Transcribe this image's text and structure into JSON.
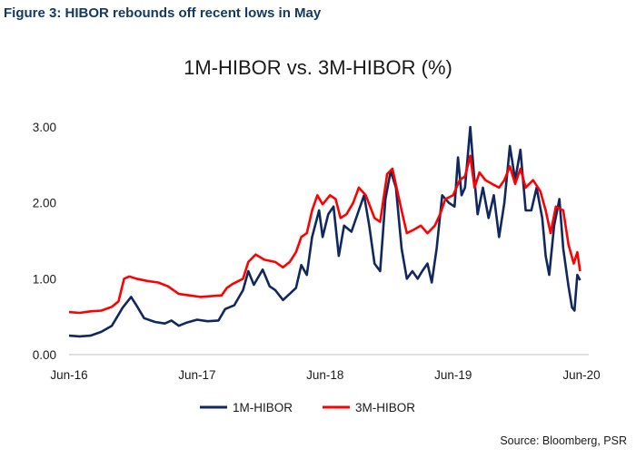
{
  "figure_title": "Figure 3: HIBOR rebounds off recent lows in May",
  "source": "Source: Bloomberg, PSR",
  "chart_data": {
    "type": "line",
    "title": "1M-HIBOR vs. 3M-HIBOR (%)",
    "xlabel": "",
    "ylabel": "",
    "ylim": [
      0,
      3
    ],
    "yticks": [
      "0.00",
      "1.00",
      "2.00",
      "3.00"
    ],
    "xlim": [
      "2016-06",
      "2020-06"
    ],
    "xticks": [
      "Jun-16",
      "Jun-17",
      "Jun-18",
      "Jun-19",
      "Jun-20"
    ],
    "grid": false,
    "legend": "bottom",
    "series": [
      {
        "name": "1M-HIBOR",
        "color": "#10275f",
        "points": [
          [
            "2016-06-01",
            0.25
          ],
          [
            "2016-07-01",
            0.24
          ],
          [
            "2016-08-01",
            0.25
          ],
          [
            "2016-09-01",
            0.3
          ],
          [
            "2016-10-01",
            0.38
          ],
          [
            "2016-11-01",
            0.62
          ],
          [
            "2016-11-25",
            0.76
          ],
          [
            "2016-12-10",
            0.65
          ],
          [
            "2017-01-01",
            0.48
          ],
          [
            "2017-02-01",
            0.43
          ],
          [
            "2017-03-01",
            0.41
          ],
          [
            "2017-03-20",
            0.45
          ],
          [
            "2017-04-10",
            0.38
          ],
          [
            "2017-05-01",
            0.42
          ],
          [
            "2017-06-01",
            0.46
          ],
          [
            "2017-07-01",
            0.44
          ],
          [
            "2017-08-01",
            0.45
          ],
          [
            "2017-08-20",
            0.6
          ],
          [
            "2017-09-15",
            0.65
          ],
          [
            "2017-10-10",
            0.85
          ],
          [
            "2017-10-25",
            1.1
          ],
          [
            "2017-11-10",
            0.92
          ],
          [
            "2017-12-05",
            1.12
          ],
          [
            "2017-12-25",
            0.9
          ],
          [
            "2018-01-10",
            0.85
          ],
          [
            "2018-02-01",
            0.72
          ],
          [
            "2018-02-20",
            0.8
          ],
          [
            "2018-03-10",
            0.88
          ],
          [
            "2018-03-25",
            1.18
          ],
          [
            "2018-04-10",
            1.05
          ],
          [
            "2018-04-25",
            1.55
          ],
          [
            "2018-05-15",
            1.9
          ],
          [
            "2018-05-25",
            1.55
          ],
          [
            "2018-06-10",
            1.85
          ],
          [
            "2018-06-25",
            1.95
          ],
          [
            "2018-07-10",
            1.3
          ],
          [
            "2018-07-25",
            1.7
          ],
          [
            "2018-08-15",
            1.62
          ],
          [
            "2018-09-05",
            1.9
          ],
          [
            "2018-09-20",
            2.1
          ],
          [
            "2018-10-05",
            1.7
          ],
          [
            "2018-10-20",
            1.2
          ],
          [
            "2018-11-05",
            1.1
          ],
          [
            "2018-11-20",
            2.05
          ],
          [
            "2018-12-05",
            2.42
          ],
          [
            "2018-12-20",
            2.2
          ],
          [
            "2019-01-05",
            1.4
          ],
          [
            "2019-01-20",
            1.0
          ],
          [
            "2019-02-05",
            1.1
          ],
          [
            "2019-02-20",
            1.0
          ],
          [
            "2019-03-05",
            1.1
          ],
          [
            "2019-03-20",
            1.2
          ],
          [
            "2019-04-01",
            0.95
          ],
          [
            "2019-04-15",
            1.4
          ],
          [
            "2019-05-01",
            2.1
          ],
          [
            "2019-05-20",
            2.0
          ],
          [
            "2019-06-05",
            1.95
          ],
          [
            "2019-06-15",
            2.6
          ],
          [
            "2019-06-25",
            2.1
          ],
          [
            "2019-07-05",
            2.2
          ],
          [
            "2019-07-20",
            3.0
          ],
          [
            "2019-07-30",
            2.4
          ],
          [
            "2019-08-10",
            1.85
          ],
          [
            "2019-08-25",
            2.2
          ],
          [
            "2019-09-10",
            1.8
          ],
          [
            "2019-09-25",
            2.1
          ],
          [
            "2019-10-10",
            1.55
          ],
          [
            "2019-10-25",
            2.0
          ],
          [
            "2019-11-10",
            2.75
          ],
          [
            "2019-11-25",
            2.3
          ],
          [
            "2019-12-10",
            2.7
          ],
          [
            "2019-12-25",
            1.9
          ],
          [
            "2020-01-10",
            1.9
          ],
          [
            "2020-01-25",
            2.2
          ],
          [
            "2020-02-10",
            1.8
          ],
          [
            "2020-02-20",
            1.3
          ],
          [
            "2020-03-01",
            1.05
          ],
          [
            "2020-03-15",
            1.7
          ],
          [
            "2020-03-30",
            2.05
          ],
          [
            "2020-04-10",
            1.4
          ],
          [
            "2020-04-25",
            0.9
          ],
          [
            "2020-05-05",
            0.62
          ],
          [
            "2020-05-12",
            0.58
          ],
          [
            "2020-05-20",
            1.05
          ],
          [
            "2020-05-28",
            0.98
          ]
        ]
      },
      {
        "name": "3M-HIBOR",
        "color": "#ff0000",
        "points": [
          [
            "2016-06-01",
            0.56
          ],
          [
            "2016-07-01",
            0.55
          ],
          [
            "2016-08-01",
            0.57
          ],
          [
            "2016-09-01",
            0.58
          ],
          [
            "2016-10-01",
            0.63
          ],
          [
            "2016-10-20",
            0.7
          ],
          [
            "2016-11-05",
            1.0
          ],
          [
            "2016-11-20",
            1.03
          ],
          [
            "2016-12-10",
            1.0
          ],
          [
            "2017-01-10",
            0.97
          ],
          [
            "2017-02-10",
            0.95
          ],
          [
            "2017-03-10",
            0.9
          ],
          [
            "2017-04-10",
            0.8
          ],
          [
            "2017-05-10",
            0.78
          ],
          [
            "2017-06-10",
            0.76
          ],
          [
            "2017-07-10",
            0.77
          ],
          [
            "2017-08-10",
            0.78
          ],
          [
            "2017-08-25",
            0.88
          ],
          [
            "2017-09-10",
            0.93
          ],
          [
            "2017-10-10",
            1.0
          ],
          [
            "2017-10-25",
            1.22
          ],
          [
            "2017-11-15",
            1.32
          ],
          [
            "2017-12-10",
            1.25
          ],
          [
            "2018-01-10",
            1.22
          ],
          [
            "2018-02-01",
            1.15
          ],
          [
            "2018-02-20",
            1.22
          ],
          [
            "2018-03-10",
            1.35
          ],
          [
            "2018-03-25",
            1.55
          ],
          [
            "2018-04-10",
            1.6
          ],
          [
            "2018-04-25",
            1.9
          ],
          [
            "2018-05-10",
            2.1
          ],
          [
            "2018-05-25",
            1.98
          ],
          [
            "2018-06-15",
            2.1
          ],
          [
            "2018-07-01",
            2.05
          ],
          [
            "2018-07-15",
            1.8
          ],
          [
            "2018-08-01",
            1.85
          ],
          [
            "2018-08-20",
            2.0
          ],
          [
            "2018-09-05",
            2.2
          ],
          [
            "2018-09-25",
            2.1
          ],
          [
            "2018-10-20",
            1.8
          ],
          [
            "2018-11-05",
            1.75
          ],
          [
            "2018-11-25",
            2.38
          ],
          [
            "2018-12-10",
            2.45
          ],
          [
            "2019-01-05",
            1.9
          ],
          [
            "2019-01-20",
            1.6
          ],
          [
            "2019-02-10",
            1.65
          ],
          [
            "2019-03-01",
            1.7
          ],
          [
            "2019-03-20",
            1.6
          ],
          [
            "2019-04-10",
            1.7
          ],
          [
            "2019-04-25",
            1.85
          ],
          [
            "2019-05-10",
            2.05
          ],
          [
            "2019-06-01",
            2.1
          ],
          [
            "2019-06-20",
            2.3
          ],
          [
            "2019-07-05",
            2.35
          ],
          [
            "2019-07-20",
            2.62
          ],
          [
            "2019-08-01",
            2.2
          ],
          [
            "2019-08-15",
            2.4
          ],
          [
            "2019-09-01",
            2.3
          ],
          [
            "2019-09-20",
            2.25
          ],
          [
            "2019-10-10",
            2.2
          ],
          [
            "2019-10-25",
            2.3
          ],
          [
            "2019-11-10",
            2.48
          ],
          [
            "2019-11-25",
            2.25
          ],
          [
            "2019-12-10",
            2.45
          ],
          [
            "2019-12-25",
            2.2
          ],
          [
            "2020-01-15",
            2.3
          ],
          [
            "2020-02-05",
            2.15
          ],
          [
            "2020-02-20",
            1.9
          ],
          [
            "2020-03-05",
            1.6
          ],
          [
            "2020-03-20",
            1.95
          ],
          [
            "2020-04-10",
            1.9
          ],
          [
            "2020-04-25",
            1.45
          ],
          [
            "2020-05-10",
            1.2
          ],
          [
            "2020-05-20",
            1.35
          ],
          [
            "2020-05-28",
            1.1
          ]
        ]
      }
    ]
  }
}
